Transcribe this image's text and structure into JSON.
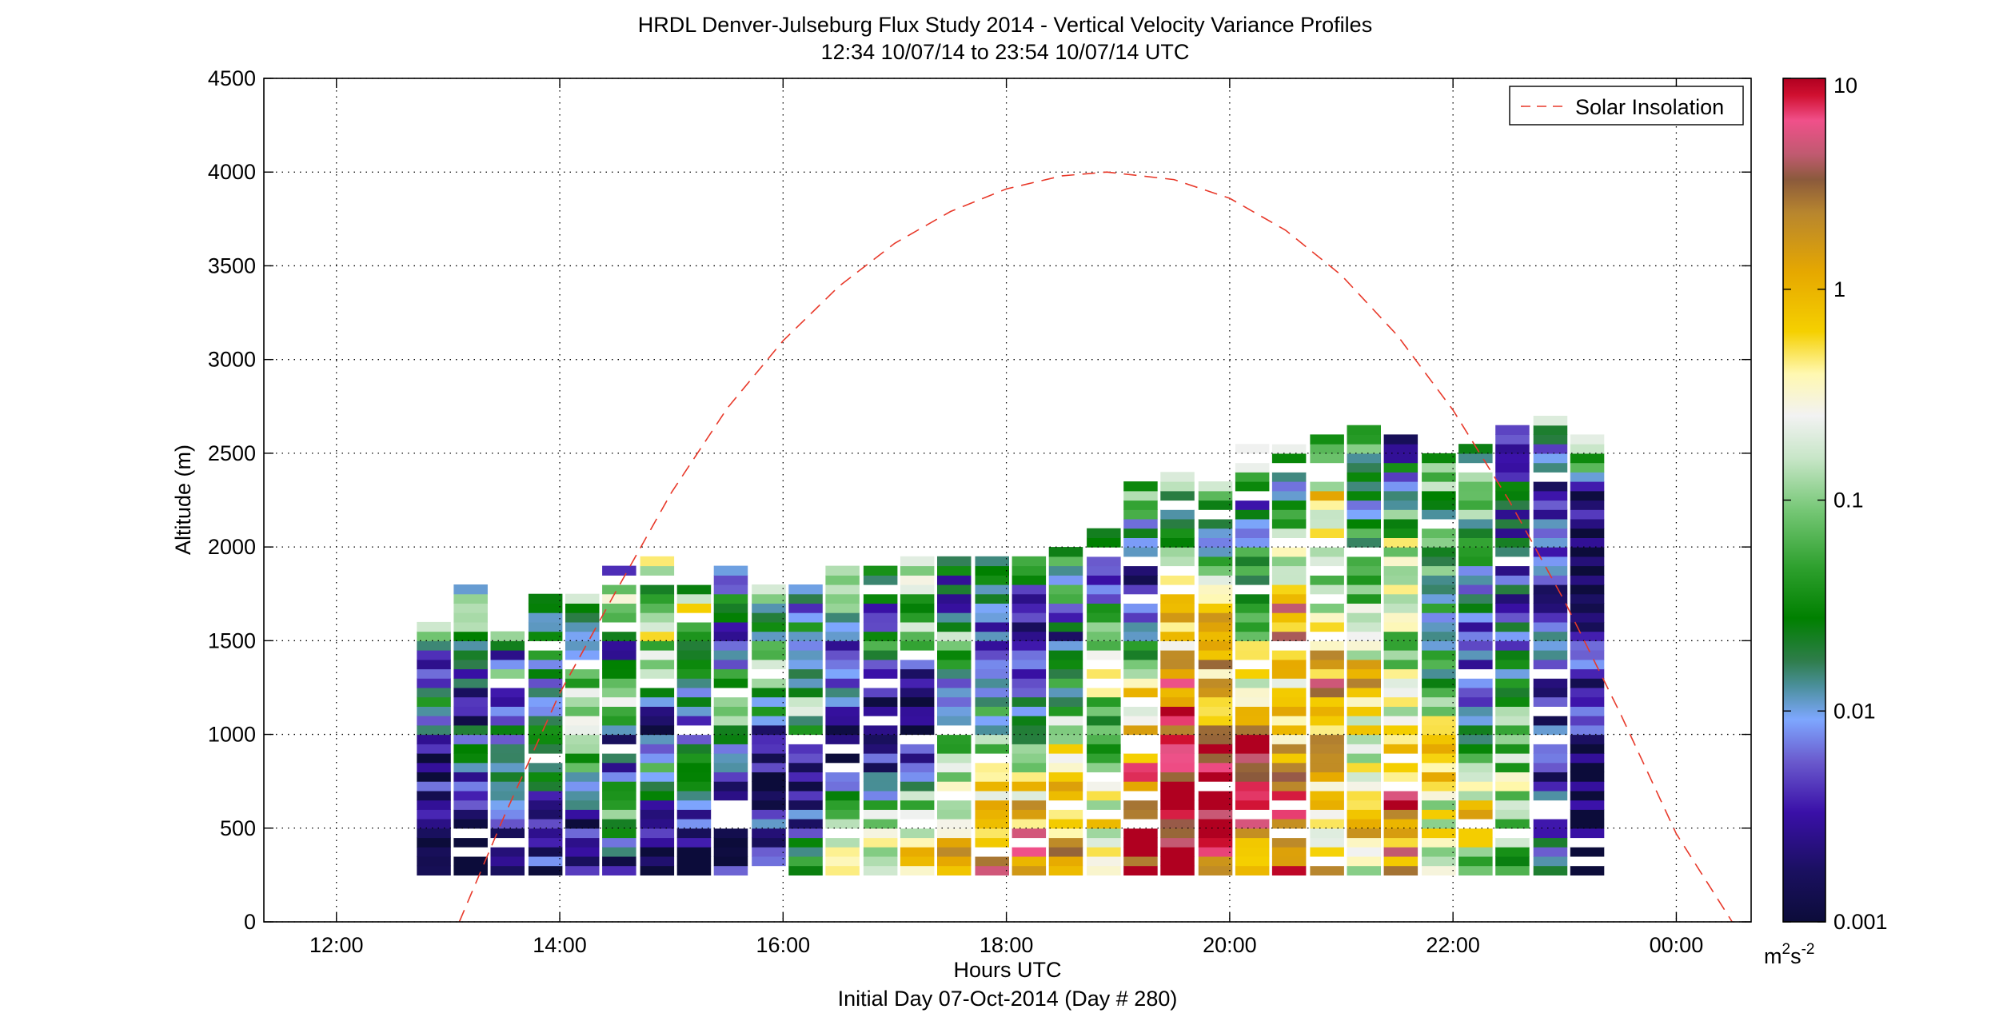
{
  "chart_data": {
    "type": "heatmap",
    "title": "HRDL Denver-Julseburg Flux Study 2014 - Vertical Velocity Variance Profiles",
    "subtitle": "12:34 10/07/14 to 23:54 10/07/14  UTC",
    "xlabel": "Hours UTC",
    "xlabel2": "Initial Day 07-Oct-2014 (Day # 280)",
    "ylabel": "Altitude (m)",
    "xlim": [
      11.35,
      24.67
    ],
    "ylim": [
      0,
      4500
    ],
    "x_ticks": [
      12,
      14,
      16,
      18,
      20,
      22,
      24
    ],
    "x_tick_labels": [
      "12:00",
      "14:00",
      "16:00",
      "18:00",
      "20:00",
      "22:00",
      "00:00"
    ],
    "y_ticks": [
      0,
      500,
      1000,
      1500,
      2000,
      2500,
      3000,
      3500,
      4000,
      4500
    ],
    "y_tick_labels": [
      "0",
      "500",
      "1000",
      "1500",
      "2000",
      "2500",
      "3000",
      "3500",
      "4000",
      "4500"
    ],
    "grid": true,
    "legend": {
      "position": "top-right",
      "entries": [
        "Solar Insolation"
      ]
    },
    "colorbar": {
      "scale": "log",
      "range": [
        0.001,
        10
      ],
      "tick_values": [
        0.001,
        0.01,
        0.1,
        1,
        10
      ],
      "tick_labels": [
        "0.001",
        "0.01",
        "0.1",
        "1",
        "10"
      ],
      "unit_base": "m",
      "unit_sup1": "2",
      "unit_mid": "s",
      "unit_sup2": "-2",
      "colormap": [
        [
          0.0,
          "#0c0c3a"
        ],
        [
          0.06,
          "#1a1060"
        ],
        [
          0.13,
          "#3a10a8"
        ],
        [
          0.19,
          "#6a5acd"
        ],
        [
          0.24,
          "#7ea7ff"
        ],
        [
          0.28,
          "#4a8f9a"
        ],
        [
          0.31,
          "#2e7d4a"
        ],
        [
          0.36,
          "#008000"
        ],
        [
          0.42,
          "#2ea02e"
        ],
        [
          0.49,
          "#78c878"
        ],
        [
          0.55,
          "#c8e6c8"
        ],
        [
          0.6,
          "#f2f2f2"
        ],
        [
          0.65,
          "#fff8b0"
        ],
        [
          0.7,
          "#f5d000"
        ],
        [
          0.77,
          "#e6a800"
        ],
        [
          0.84,
          "#b8862e"
        ],
        [
          0.88,
          "#8b5a3c"
        ],
        [
          0.91,
          "#c05a70"
        ],
        [
          0.95,
          "#f0508a"
        ],
        [
          0.98,
          "#d01030"
        ],
        [
          1.0,
          "#b00020"
        ]
      ]
    },
    "solar_insolation": {
      "name": "Solar Insolation",
      "color": "#e8392a",
      "x": [
        13.1,
        13.5,
        14.0,
        14.5,
        15.0,
        15.5,
        16.0,
        16.5,
        17.0,
        17.5,
        18.0,
        18.5,
        18.9,
        19.5,
        20.0,
        20.5,
        21.0,
        21.5,
        22.0,
        22.5,
        23.0,
        23.5,
        24.0,
        24.5
      ],
      "y": [
        0,
        560,
        1220,
        1760,
        2290,
        2740,
        3100,
        3390,
        3620,
        3790,
        3910,
        3980,
        4000,
        3960,
        3860,
        3690,
        3450,
        3130,
        2730,
        2250,
        1710,
        1110,
        470,
        -100
      ]
    },
    "profile_series": {
      "description": "Variance profiles (m^2 s^-2) every 20 min; bins 50 m from 250 m",
      "profiles": [
        {
          "t": 12.72,
          "top": 1620,
          "level": [
            0.001,
            0.001,
            0.001,
            0.002,
            0.003,
            0.002,
            0.001,
            0.005,
            0.02,
            0.01,
            0.003,
            0.002,
            0.05,
            0.2
          ]
        },
        {
          "t": 13.05,
          "top": 1820,
          "level": [
            0.001,
            0.001,
            0.002,
            0.003,
            0.01,
            0.03,
            0.005,
            0.002,
            0.006,
            0.02,
            0.15,
            0.3,
            0.01
          ]
        },
        {
          "t": 13.38,
          "top": 1580,
          "level": [
            0.001,
            0.002,
            0.004,
            0.008,
            0.015,
            0.03,
            0.005,
            0.003,
            0.1,
            0.004,
            0.4
          ]
        },
        {
          "t": 13.72,
          "top": 1750,
          "level": [
            0.002,
            0.006,
            0.003,
            0.02,
            0.05,
            0.01,
            0.004,
            0.08,
            0.02,
            0.01
          ]
        },
        {
          "t": 14.05,
          "top": 1780,
          "level": [
            0.003,
            0.002,
            0.01,
            0.04,
            0.1,
            0.3,
            0.02,
            0.005,
            0.5
          ]
        },
        {
          "t": 14.38,
          "top": 1930,
          "level": [
            0.002,
            0.02,
            0.05,
            0.008,
            0.004,
            0.1,
            0.01,
            0.006,
            0.2,
            0.005
          ]
        },
        {
          "t": 14.72,
          "top": 1970,
          "level": [
            0.001,
            0.003,
            0.01,
            0.05,
            0.002,
            0.03,
            0.1,
            0.3,
            0.02,
            0.6
          ]
        },
        {
          "t": 15.05,
          "top": 1870,
          "level": [
            0.001,
            0.002,
            0.005,
            0.1,
            0.002,
            0.03,
            0.01,
            0.2,
            0.004
          ]
        },
        {
          "t": 15.38,
          "top": 1900,
          "level": [
            0.002,
            0.001,
            0.006,
            0.03,
            0.1,
            0.004,
            0.02,
            0.005
          ]
        },
        {
          "t": 15.72,
          "top": 1820,
          "level": [
            0.002,
            0.005,
            0.001,
            0.003,
            0.02,
            0.06,
            0.008,
            0.3
          ]
        },
        {
          "t": 16.05,
          "top": 1800,
          "level": [
            0.03,
            0.005,
            0.002,
            0.01,
            0.1,
            0.003,
            0.02,
            0.004
          ]
        },
        {
          "t": 16.38,
          "top": 1900,
          "level": [
            0.3,
            0.05,
            0.005,
            0.002,
            0.02,
            0.004,
            0.05,
            0.8
          ]
        },
        {
          "t": 16.72,
          "top": 1930,
          "level": [
            0.5,
            0.2,
            0.01,
            0.001,
            0.005,
            0.03,
            0.008,
            0.06
          ]
        },
        {
          "t": 17.05,
          "top": 1960,
          "level": [
            0.4,
            0.3,
            0.02,
            0.001,
            0.001,
            0.05,
            0.1,
            0.7
          ]
        },
        {
          "t": 17.38,
          "top": 1950,
          "level": [
            2.0,
            0.5,
            0.1,
            0.02,
            0.003,
            0.08,
            0.005,
            0.02
          ]
        },
        {
          "t": 17.72,
          "top": 1990,
          "level": [
            4.0,
            0.8,
            0.6,
            0.05,
            0.01,
            0.003,
            0.02,
            0.01
          ]
        },
        {
          "t": 18.05,
          "top": 1980,
          "level": [
            3.0,
            1.5,
            0.3,
            0.04,
            0.02,
            0.002,
            0.005,
            0.03
          ]
        },
        {
          "t": 18.38,
          "top": 2000,
          "level": [
            1.5,
            0.8,
            0.6,
            0.1,
            0.02,
            0.005,
            0.03,
            0.02
          ]
        },
        {
          "t": 18.72,
          "top": 2100,
          "level": [
            1.0,
            0.3,
            0.1,
            0.05,
            0.5,
            0.03,
            0.004,
            0.02
          ]
        },
        {
          "t": 19.05,
          "top": 2360,
          "level": [
            5.0,
            8.0,
            2.0,
            0.5,
            0.05,
            0.002,
            0.01,
            0.08
          ]
        },
        {
          "t": 19.38,
          "top": 2440,
          "level": [
            6.0,
            9.0,
            8.0,
            3.0,
            0.6,
            0.3,
            0.01,
            0.2
          ]
        },
        {
          "t": 19.72,
          "top": 2380,
          "level": [
            2.0,
            9.0,
            9.0,
            1.0,
            0.8,
            0.3,
            0.005,
            0.6
          ]
        },
        {
          "t": 20.05,
          "top": 2550,
          "level": [
            0.5,
            4.0,
            9.0,
            0.3,
            0.1,
            0.03,
            0.01,
            0.5
          ]
        },
        {
          "t": 20.38,
          "top": 2620,
          "level": [
            3.0,
            5.0,
            0.8,
            0.4,
            2.0,
            0.2,
            0.01,
            0.4
          ]
        },
        {
          "t": 20.72,
          "top": 2600,
          "level": [
            0.8,
            0.6,
            0.7,
            1.5,
            0.3,
            0.1,
            0.5,
            0.02
          ]
        },
        {
          "t": 21.05,
          "top": 2650,
          "level": [
            0.3,
            1.5,
            0.2,
            0.8,
            0.1,
            0.05,
            0.01,
            0.1
          ]
        },
        {
          "t": 21.38,
          "top": 2600,
          "level": [
            1.0,
            4.0,
            0.5,
            0.2,
            0.1,
            0.3,
            0.02,
            0.004
          ]
        },
        {
          "t": 21.72,
          "top": 2500,
          "level": [
            0.2,
            0.3,
            0.6,
            0.08,
            0.01,
            0.05,
            0.03,
            0.1
          ]
        },
        {
          "t": 22.05,
          "top": 2550,
          "level": [
            0.1,
            0.5,
            0.05,
            0.008,
            0.01,
            0.02,
            0.06,
            0.02
          ]
        },
        {
          "t": 22.38,
          "top": 2650,
          "level": [
            0.05,
            0.2,
            0.1,
            0.03,
            0.005,
            0.008,
            0.01,
            0.004
          ]
        },
        {
          "t": 22.72,
          "top": 2700,
          "level": [
            0.01,
            0.005,
            0.003,
            0.004,
            0.005,
            0.004,
            0.003,
            0.1
          ]
        },
        {
          "t": 23.05,
          "top": 2620,
          "level": [
            0.001,
            0.001,
            0.002,
            0.004,
            0.003,
            0.002,
            0.002,
            1.0
          ]
        }
      ]
    }
  }
}
